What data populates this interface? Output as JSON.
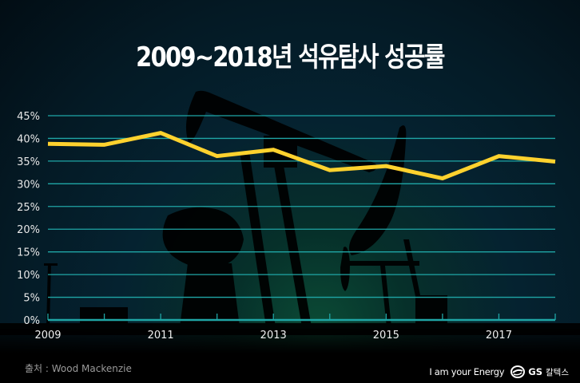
{
  "header": {
    "title": "2009~2018년 석유탐사 성공률"
  },
  "footer": {
    "source": "출처 : Wood Mackenzie",
    "tagline": "I am your Energy",
    "logo_text": "GS",
    "logo_korean": "칼텍스",
    "logo_icon": "gs-caltex-logo-icon"
  },
  "colors": {
    "line": "#ffd22e",
    "grid": "#1fa6a6",
    "axis": "#1fa6a6",
    "text": "#ffffff"
  },
  "chart_data": {
    "type": "line",
    "title": "2009~2018년 석유탐사 성공률",
    "xlabel": "",
    "ylabel": "",
    "x": [
      2009,
      2010,
      2011,
      2012,
      2013,
      2014,
      2015,
      2016,
      2017,
      2018
    ],
    "series": [
      {
        "name": "석유탐사 성공률",
        "values": [
          38.8,
          38.6,
          41.2,
          36.1,
          37.5,
          33.0,
          33.9,
          31.2,
          36.1,
          34.9
        ]
      }
    ],
    "x_tick_labels": [
      "2009",
      "2011",
      "2013",
      "2015",
      "2017"
    ],
    "y_tick_labels": [
      "0%",
      "5%",
      "10%",
      "15%",
      "20%",
      "25%",
      "30%",
      "35%",
      "40%",
      "45%"
    ],
    "ylim": [
      0,
      45
    ],
    "grid": true,
    "legend": "none",
    "annotations": [
      "출처 : Wood Mackenzie"
    ]
  }
}
